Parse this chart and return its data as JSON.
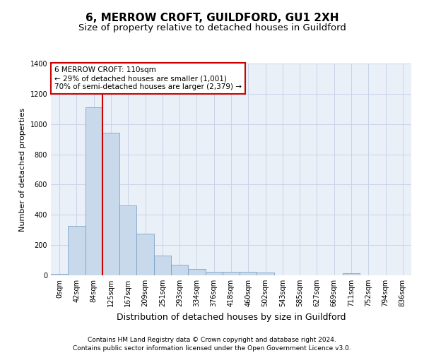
{
  "title": "6, MERROW CROFT, GUILDFORD, GU1 2XH",
  "subtitle": "Size of property relative to detached houses in Guildford",
  "xlabel": "Distribution of detached houses by size in Guildford",
  "ylabel": "Number of detached properties",
  "footnote1": "Contains HM Land Registry data © Crown copyright and database right 2024.",
  "footnote2": "Contains public sector information licensed under the Open Government Licence v3.0.",
  "annotation_line1": "6 MERROW CROFT: 110sqm",
  "annotation_line2": "← 29% of detached houses are smaller (1,001)",
  "annotation_line3": "70% of semi-detached houses are larger (2,379) →",
  "bar_color": "#c9d9ec",
  "bar_edge_color": "#7097c0",
  "vline_color": "#cc0000",
  "vline_x": 2.5,
  "bin_labels": [
    "0sqm",
    "42sqm",
    "84sqm",
    "125sqm",
    "167sqm",
    "209sqm",
    "251sqm",
    "293sqm",
    "334sqm",
    "376sqm",
    "418sqm",
    "460sqm",
    "502sqm",
    "543sqm",
    "585sqm",
    "627sqm",
    "669sqm",
    "711sqm",
    "752sqm",
    "794sqm",
    "836sqm"
  ],
  "bar_heights": [
    10,
    327,
    1110,
    945,
    463,
    275,
    130,
    68,
    40,
    22,
    23,
    22,
    17,
    0,
    0,
    0,
    0,
    12,
    0,
    0,
    0
  ],
  "ylim": [
    0,
    1400
  ],
  "yticks": [
    0,
    200,
    400,
    600,
    800,
    1000,
    1200,
    1400
  ],
  "background_color": "#ffffff",
  "plot_bg_color": "#eaf0f8",
  "grid_color": "#c8d4e8",
  "title_fontsize": 11,
  "subtitle_fontsize": 9.5,
  "ylabel_fontsize": 8,
  "xlabel_fontsize": 9,
  "tick_fontsize": 7,
  "annotation_fontsize": 7.5,
  "footnote_fontsize": 6.5
}
